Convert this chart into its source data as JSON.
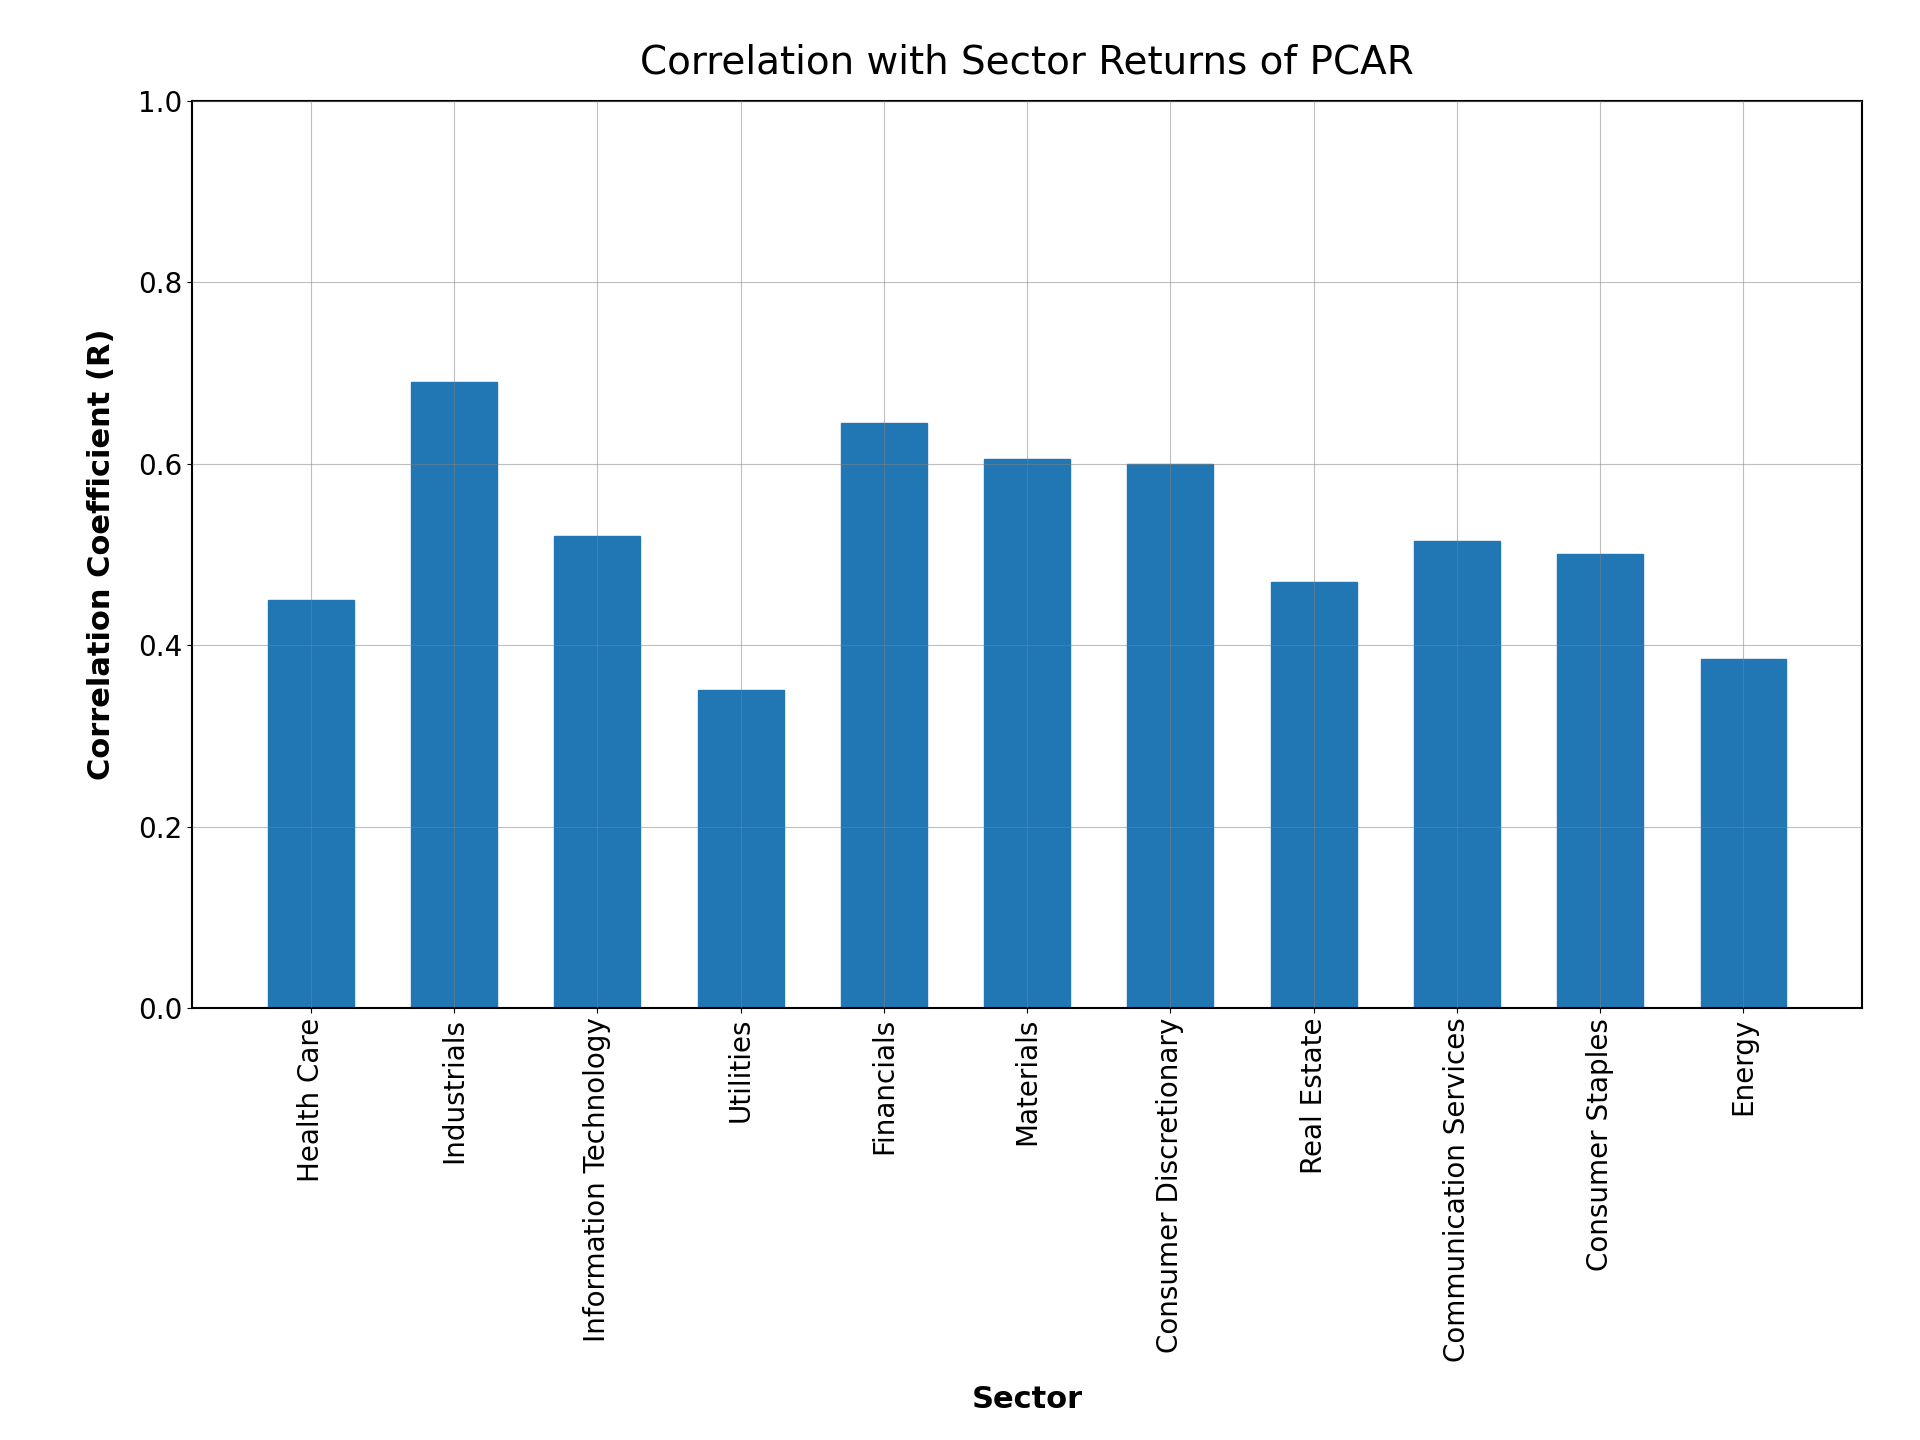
{
  "title": "Correlation with Sector Returns of PCAR",
  "xlabel": "Sector",
  "ylabel": "Correlation Coefficient (R)",
  "categories": [
    "Health Care",
    "Industrials",
    "Information Technology",
    "Utilities",
    "Financials",
    "Materials",
    "Consumer Discretionary",
    "Real Estate",
    "Communication Services",
    "Consumer Staples",
    "Energy"
  ],
  "values": [
    0.45,
    0.69,
    0.52,
    0.35,
    0.645,
    0.605,
    0.6,
    0.47,
    0.515,
    0.5,
    0.385
  ],
  "bar_color": "#2077b4",
  "ylim": [
    0.0,
    1.0
  ],
  "yticks": [
    0.0,
    0.2,
    0.4,
    0.6,
    0.8,
    1.0
  ],
  "title_fontsize": 28,
  "label_fontsize": 22,
  "tick_fontsize": 20,
  "background_color": "#ffffff",
  "grid": true,
  "bar_width": 0.6
}
